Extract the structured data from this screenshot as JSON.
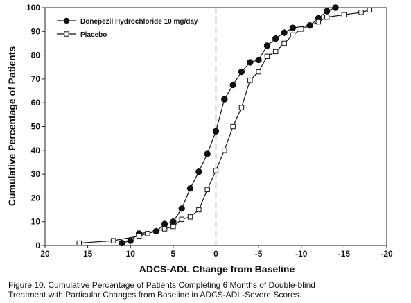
{
  "chart_data": {
    "type": "line",
    "xlabel": "ADCS-ADL Change from Baseline",
    "ylabel": "Cumulative Percentage of Patients",
    "xlim": [
      20,
      -20
    ],
    "ylim": [
      0,
      100
    ],
    "x_ticks": [
      20,
      15,
      10,
      5,
      0,
      -5,
      -10,
      -15,
      -20
    ],
    "x_tick_labels": [
      "20",
      "15",
      "10",
      "5",
      "0",
      "-5",
      "-10",
      "-15",
      "-20"
    ],
    "y_ticks": [
      0,
      10,
      20,
      30,
      40,
      50,
      60,
      70,
      80,
      90,
      100
    ],
    "y_tick_labels": [
      "0",
      "10",
      "20",
      "30",
      "40",
      "50",
      "60",
      "70",
      "80",
      "90",
      "100"
    ],
    "grid": false,
    "legend_position": "top-left",
    "reference_line_x": 0,
    "series": [
      {
        "name": "Donepezil Hydrochloride 10 mg/day",
        "marker": "filled-circle",
        "color": "#111111",
        "x": [
          11,
          10,
          9,
          7,
          6,
          5,
          4,
          3,
          2,
          1,
          0,
          -1,
          -2,
          -3,
          -4,
          -5,
          -6,
          -7,
          -8,
          -9,
          -11,
          -12,
          -13,
          -14
        ],
        "y": [
          1,
          2,
          5,
          6,
          9,
          10,
          15.5,
          24,
          31,
          38.5,
          48,
          61.5,
          67.5,
          73,
          77,
          78,
          84,
          87,
          89.5,
          91.5,
          92.5,
          95.5,
          98.5,
          100
        ]
      },
      {
        "name": "Placebo",
        "marker": "open-square",
        "color": "#111111",
        "x": [
          16,
          12,
          9,
          8,
          6,
          5,
          4,
          3,
          2,
          1,
          0,
          -1,
          -2,
          -3,
          -4,
          -5,
          -6,
          -7,
          -8,
          -9,
          -10,
          -12,
          -13,
          -15,
          -17,
          -18
        ],
        "y": [
          1,
          2,
          4,
          5,
          7,
          8,
          11,
          12,
          15,
          23.5,
          31.5,
          40,
          50,
          58,
          69.5,
          73,
          79.5,
          81.5,
          85,
          88.5,
          91,
          94,
          96,
          97,
          98,
          99
        ]
      }
    ]
  },
  "caption": {
    "line1": "Figure 10. Cumulative Percentage of Patients Completing 6 Months of  Double-blind",
    "line2": "Treatment with Particular Changes from Baseline in ADCS-ADL-Severe Scores."
  }
}
